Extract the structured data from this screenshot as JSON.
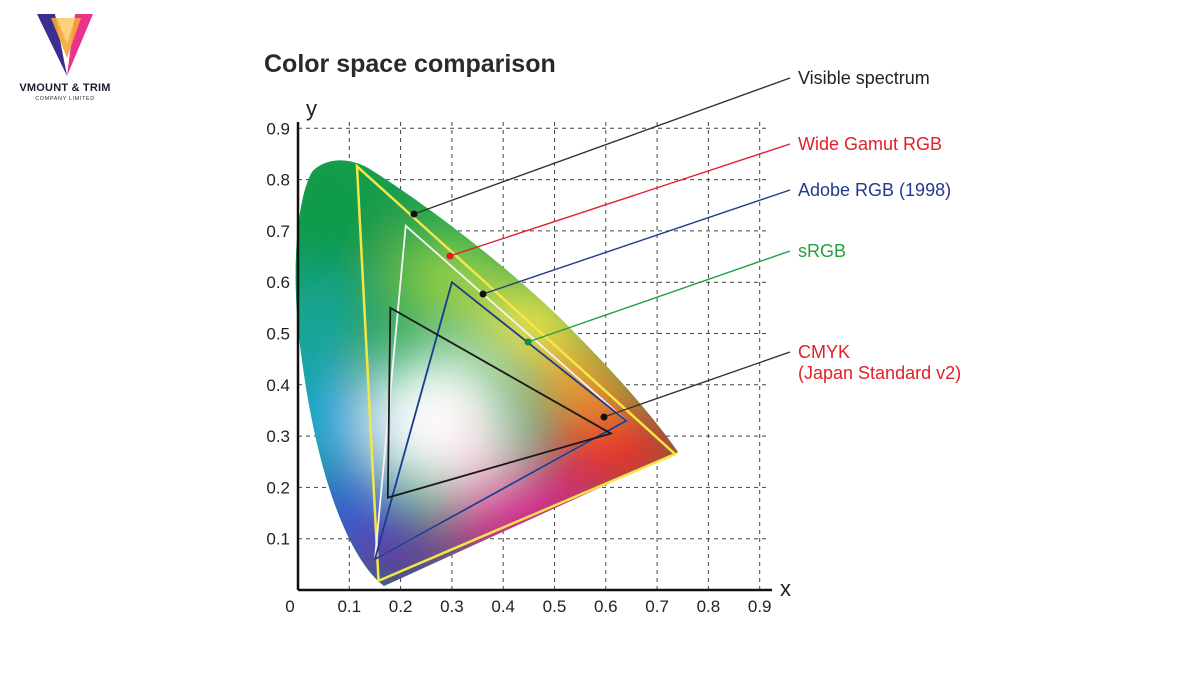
{
  "brand": {
    "name": "VMOUNT & TRIM",
    "subtitle": "COMPANY LIMITED",
    "colors": {
      "left_wing": "#3a2f8f",
      "right_wing": "#e8358a",
      "center": "#f7a43a"
    }
  },
  "diagram": {
    "title": "Color space comparison",
    "x_axis": {
      "label": "x",
      "ticks": [
        "0",
        "0.1",
        "0.2",
        "0.3",
        "0.4",
        "0.5",
        "0.6",
        "0.7",
        "0.8",
        "0.9"
      ]
    },
    "y_axis": {
      "label": "y",
      "ticks": [
        "0.1",
        "0.2",
        "0.3",
        "0.4",
        "0.5",
        "0.6",
        "0.7",
        "0.8",
        "0.9"
      ]
    },
    "gamuts": [
      {
        "id": "visible",
        "label": "Visible spectrum",
        "color": "#222222"
      },
      {
        "id": "wide",
        "label": "Wide Gamut RGB",
        "color": "#e0202a",
        "outline": "#f2e64a",
        "points": [
          [
            0.115,
            0.826
          ],
          [
            0.735,
            0.265
          ],
          [
            0.157,
            0.018
          ]
        ]
      },
      {
        "id": "adobe",
        "label": "Adobe RGB (1998)",
        "color": "#233a8c",
        "outline": "#f4f4f4",
        "points": [
          [
            0.21,
            0.71
          ],
          [
            0.64,
            0.33
          ],
          [
            0.15,
            0.06
          ]
        ]
      },
      {
        "id": "srgb",
        "label": "sRGB",
        "color": "#22a040",
        "outline": "#1e3a8c",
        "points": [
          [
            0.3,
            0.6
          ],
          [
            0.64,
            0.33
          ],
          [
            0.15,
            0.06
          ]
        ]
      },
      {
        "id": "cmyk",
        "label": "CMYK",
        "label2": "(Japan Standard v2)",
        "color": "#e0202a",
        "outline": "#1a1a1a",
        "points": [
          [
            0.18,
            0.55
          ],
          [
            0.61,
            0.305
          ],
          [
            0.175,
            0.18
          ]
        ]
      }
    ]
  }
}
